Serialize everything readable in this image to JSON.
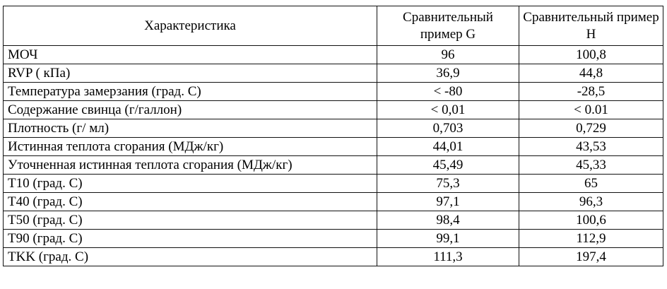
{
  "table": {
    "headers": [
      "Характеристика",
      "Сравнительный пример G",
      "Сравнительный пример H"
    ],
    "rows": [
      [
        "МОЧ",
        "96",
        "100,8"
      ],
      [
        "RVP ( кПа)",
        "36,9",
        "44,8"
      ],
      [
        "Температура замерзания (град. С)",
        "< -80",
        "-28,5"
      ],
      [
        "Содержание свинца (г/галлон)",
        "< 0,01",
        "< 0.01"
      ],
      [
        "Плотность (г/ мл)",
        "0,703",
        "0,729"
      ],
      [
        "Истинная теплота сгорания (МДж/кг)",
        "44,01",
        "43,53"
      ],
      [
        "Уточненная истинная теплота сгорания (МДж/кг)",
        "45,49",
        "45,33"
      ],
      [
        "T10 (град. С)",
        "75,3",
        "65"
      ],
      [
        "T40 (град. С)",
        "97,1",
        "96,3"
      ],
      [
        "T50 (град. С)",
        "98,4",
        "100,6"
      ],
      [
        "T90 (град. С)",
        "99,1",
        "112,9"
      ],
      [
        "TKK (град. С)",
        "111,3",
        "197,4"
      ]
    ]
  }
}
